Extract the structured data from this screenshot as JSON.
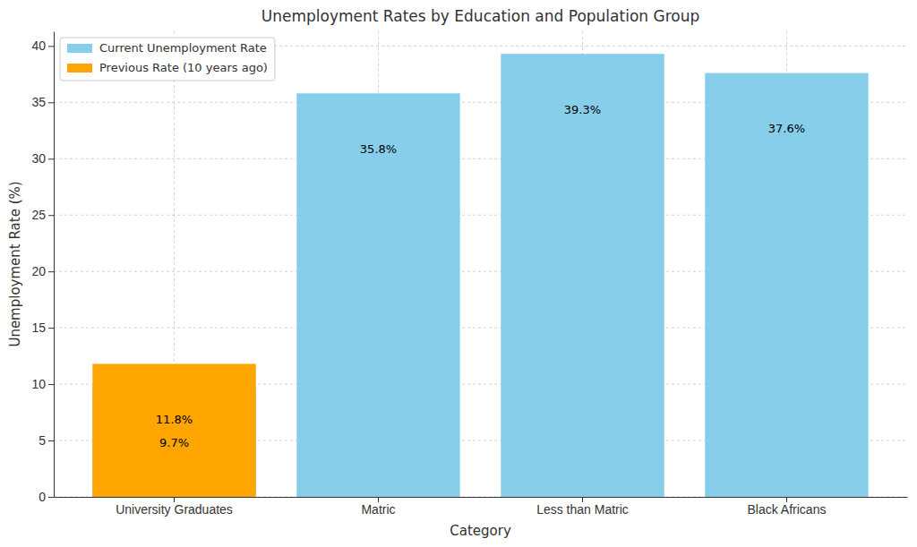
{
  "chart_data": {
    "type": "bar",
    "title": "Unemployment Rates by Education and Population Group",
    "x_label": "Category",
    "y_label": "Unemployment Rate (%)",
    "categories": [
      "University Graduates",
      "Matric",
      "Less than Matric",
      "Black Africans"
    ],
    "series": [
      {
        "name": "Current Unemployment Rate",
        "color": "#87ceeb",
        "values": [
          9.7,
          35.8,
          39.3,
          37.6
        ],
        "value_labels": [
          "9.7%",
          "35.8%",
          "39.3%",
          "37.6%"
        ]
      },
      {
        "name": "Previous Rate (10 years ago)",
        "color": "#ffa500",
        "values": [
          11.8,
          null,
          null,
          null
        ],
        "value_labels": [
          "11.8%",
          null,
          null,
          null
        ]
      }
    ],
    "ylim": [
      0,
      41.3
    ],
    "yticks": [
      0,
      5,
      10,
      15,
      20,
      25,
      30,
      35,
      40
    ],
    "grid": true,
    "legend": "upper left",
    "data_labels": true
  }
}
